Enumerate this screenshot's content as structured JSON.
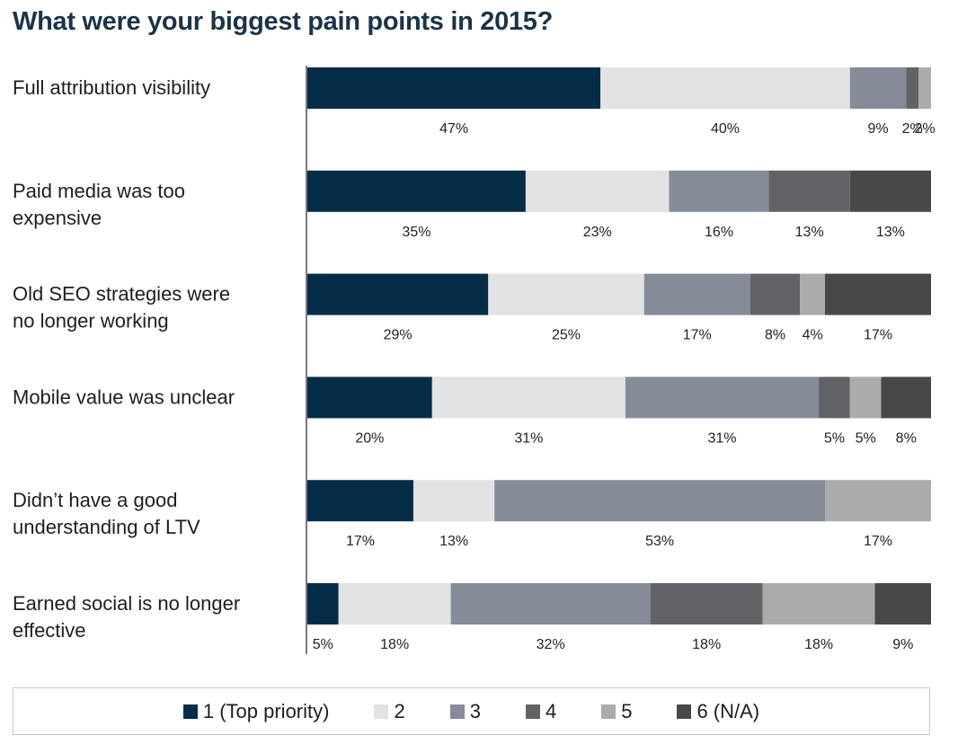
{
  "chart_data": {
    "type": "stacked-bar-horizontal",
    "title": "What were your biggest pain points in 2015?",
    "categories": [
      [
        "Full attribution visibility"
      ],
      [
        "Paid media was too",
        "expensive"
      ],
      [
        "Old SEO strategies were",
        "no longer working"
      ],
      [
        "Mobile value was unclear"
      ],
      [
        "Didn’t have a good",
        "understanding of LTV"
      ],
      [
        "Earned social is no longer",
        "effective"
      ]
    ],
    "series": [
      {
        "name": "1 (Top priority)",
        "color": "#062d48",
        "values": [
          47,
          35,
          29,
          20,
          17,
          5
        ]
      },
      {
        "name": "2",
        "color": "#e1e2e4",
        "values": [
          40,
          23,
          25,
          31,
          13,
          18
        ]
      },
      {
        "name": "3",
        "color": "#868b99",
        "values": [
          9,
          16,
          17,
          31,
          53,
          32
        ]
      },
      {
        "name": "4",
        "color": "#616366",
        "values": [
          2,
          13,
          8,
          5,
          0,
          18
        ]
      },
      {
        "name": "5",
        "color": "#ababad",
        "values": [
          2,
          0,
          4,
          5,
          17,
          18
        ]
      },
      {
        "name": "6 (N/A)",
        "color": "#484849",
        "values": [
          0,
          13,
          17,
          8,
          0,
          9
        ]
      }
    ],
    "value_labels": [
      [
        "47%",
        "40%",
        "9%",
        "2%",
        "2%",
        ""
      ],
      [
        "35%",
        "23%",
        "16%",
        "13%",
        "",
        "13%"
      ],
      [
        "29%",
        "25%",
        "17%",
        "8%",
        "4%",
        "17%"
      ],
      [
        "20%",
        "31%",
        "31%",
        "5%",
        "5%",
        "8%"
      ],
      [
        "17%",
        "13%",
        "53%",
        "",
        "17%",
        ""
      ],
      [
        "5%",
        "18%",
        "32%",
        "18%",
        "18%",
        "9%"
      ]
    ],
    "xlim": [
      0,
      100
    ],
    "legend_position": "bottom"
  }
}
